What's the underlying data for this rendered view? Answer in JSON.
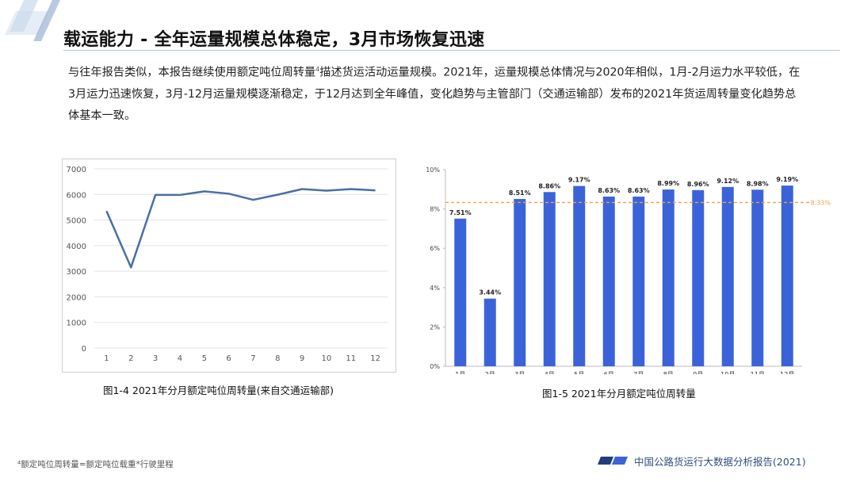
{
  "slide": {
    "title": "载运能力 - 全年运量规模总体稳定，3月市场恢复迅速",
    "intro_before": "与往年报告类似，本报告继续使用额定吨位周转量",
    "intro_sup": "4",
    "intro_after": "描述货运活动运量规模。2021年，运量规模总体情况与2020年相似，1月-2月运力水平较低，在3月运力迅速恢复，3月-12月运量规模逐渐稳定，于12月达到全年峰值，变化趋势与主管部门（交通运输部）发布的2021年货运周转量变化趋势总体基本一致。",
    "caption_left": "图1-4  2021年分月额定吨位周转量(来自交通运输部)",
    "caption_right": "图1-5  2021年分月额定吨位周转量",
    "footnote": "⁴额定吨位周转量=额定吨位载重*行驶里程",
    "footer": "中国公路货运行大数据分析报告(2021)",
    "colors": {
      "line": "#4a6fa5",
      "bar": "#3b63d9",
      "ref": "#f0a04b",
      "accent": "#1f3f7a"
    }
  },
  "chart_data": [
    {
      "type": "line",
      "x": [
        "1",
        "2",
        "3",
        "4",
        "5",
        "6",
        "7",
        "8",
        "9",
        "10",
        "11",
        "12"
      ],
      "values": [
        5350,
        3150,
        5980,
        5980,
        6120,
        6030,
        5790,
        5990,
        6210,
        6150,
        6210,
        6160
      ],
      "ylim": [
        0,
        7000
      ],
      "yticks": [
        "0",
        "1000",
        "2000",
        "3000",
        "4000",
        "5000",
        "6000",
        "7000"
      ],
      "grid": true
    },
    {
      "type": "bar",
      "categories": [
        "1月",
        "2月",
        "3月",
        "4月",
        "5月",
        "6月",
        "7月",
        "8月",
        "9月",
        "10月",
        "11月",
        "12月"
      ],
      "values": [
        7.51,
        3.44,
        8.51,
        8.86,
        9.17,
        8.63,
        8.63,
        8.99,
        8.96,
        9.12,
        8.98,
        9.19
      ],
      "value_labels": [
        "7.51%",
        "3.44%",
        "8.51%",
        "8.86%",
        "9.17%",
        "8.63%",
        "8.63%",
        "8.99%",
        "8.96%",
        "9.12%",
        "8.98%",
        "9.19%"
      ],
      "reference_value": 8.33,
      "reference_label": "8.33%",
      "ylim": [
        0,
        10
      ],
      "yticks": [
        "0%",
        "2%",
        "4%",
        "6%",
        "8%",
        "10%"
      ],
      "grid": false
    }
  ]
}
